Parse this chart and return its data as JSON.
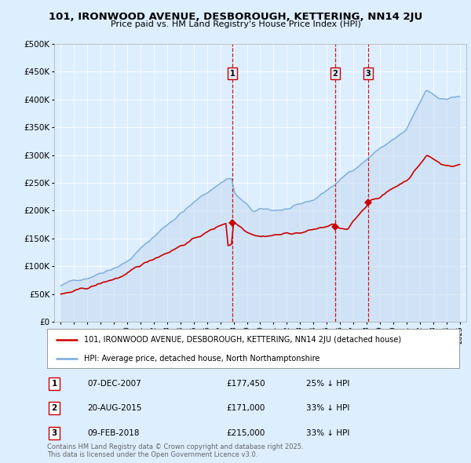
{
  "title": "101, IRONWOOD AVENUE, DESBOROUGH, KETTERING, NN14 2JU",
  "subtitle": "Price paid vs. HM Land Registry's House Price Index (HPI)",
  "bg_color": "#ddeeff",
  "plot_bg_color": "#ddeeff",
  "hpi_color": "#7aaadd",
  "price_color": "#cc0000",
  "marker_color": "#cc0000",
  "sales": [
    {
      "num": 1,
      "date": "07-DEC-2007",
      "price": 177450,
      "pct": "25%",
      "x": 2007.92
    },
    {
      "num": 2,
      "date": "20-AUG-2015",
      "price": 171000,
      "pct": "33%",
      "x": 2015.63
    },
    {
      "num": 3,
      "date": "09-FEB-2018",
      "price": 215000,
      "pct": "33%",
      "x": 2018.11
    }
  ],
  "legend_items": [
    "101, IRONWOOD AVENUE, DESBOROUGH, KETTERING, NN14 2JU (detached house)",
    "HPI: Average price, detached house, North Northamptonshire"
  ],
  "footer": "Contains HM Land Registry data © Crown copyright and database right 2025.\nThis data is licensed under the Open Government Licence v3.0.",
  "ylim": [
    0,
    500000
  ],
  "xlim": [
    1994.5,
    2025.5
  ],
  "yticks": [
    0,
    50000,
    100000,
    150000,
    200000,
    250000,
    300000,
    350000,
    400000,
    450000,
    500000
  ],
  "ytick_labels": [
    "£0",
    "£50K",
    "£100K",
    "£150K",
    "£200K",
    "£250K",
    "£300K",
    "£350K",
    "£400K",
    "£450K",
    "£500K"
  ]
}
